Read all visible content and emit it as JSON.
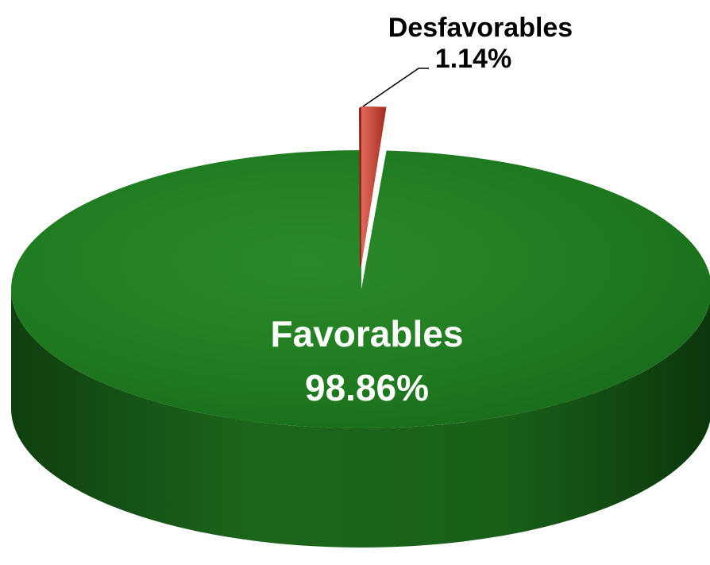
{
  "chart_data": {
    "type": "pie",
    "style": "3d",
    "slices": [
      {
        "label": "Favorables",
        "value_label": "98.86%",
        "value": 98.86,
        "color": "#1f7a1f"
      },
      {
        "label": "Desfavorables",
        "value_label": "1.14%",
        "value": 1.14,
        "color": "#c0392b"
      }
    ],
    "legend": "none"
  }
}
